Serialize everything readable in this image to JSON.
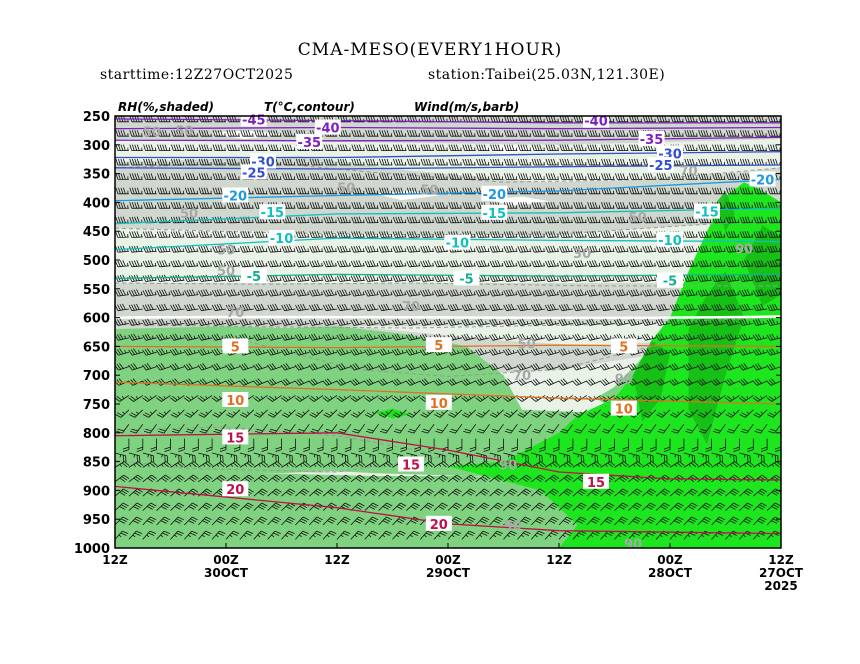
{
  "header": {
    "title": "CMA-MESO(EVERY1HOUR)",
    "starttime": "starttime:12Z27OCT2025",
    "station": "station:Taibei(25.03N,121.30E)"
  },
  "legend": {
    "rh": "RH(%,shaded)",
    "temp": "T(°C,contour)",
    "wind": "Wind(m/s,barb)"
  },
  "colors": {
    "rh_lt50": "#ffffff",
    "rh_50_70": "#e8f2e6",
    "rh_70_90": "#c7cdc6",
    "rh_90_100": "#7fd27f",
    "rh_sat": "#1ee61e",
    "rh_sat_dark": "#16b816",
    "rh_contour": "#999999",
    "temp_warm": "#e07020",
    "temp_hot": "#c0104a",
    "temp_m5": "#10b090",
    "temp_m10": "#10c0c0",
    "temp_m20": "#1a9ae6",
    "temp_m25": "#3050d0",
    "temp_m35": "#8020c0",
    "wind_barb": "#111111"
  },
  "chart_data": {
    "type": "heatmap",
    "title": "CMA-MESO(EVERY1HOUR)",
    "subtitle": "starttime:12Z27OCT2025  station:Taibei(25.03N,121.30E)",
    "xlabel": "",
    "ylabel": "",
    "x_ticks": [
      {
        "hours_after_start": 72,
        "label": [
          "12Z"
        ]
      },
      {
        "hours_after_start": 60,
        "label": [
          "00Z",
          "30OCT"
        ]
      },
      {
        "hours_after_start": 48,
        "label": [
          "12Z"
        ]
      },
      {
        "hours_after_start": 36,
        "label": [
          "00Z",
          "29OCT"
        ]
      },
      {
        "hours_after_start": 24,
        "label": [
          "12Z"
        ]
      },
      {
        "hours_after_start": 12,
        "label": [
          "00Z",
          "28OCT"
        ]
      },
      {
        "hours_after_start": 0,
        "label": [
          "12Z",
          "27OCT",
          "2025"
        ]
      }
    ],
    "x_direction": "time increases right-to-left",
    "y_ticks": [
      250,
      300,
      350,
      400,
      450,
      500,
      550,
      600,
      650,
      700,
      750,
      800,
      850,
      900,
      950,
      1000
    ],
    "ylim_hpa": [
      1000,
      250
    ],
    "rh_shading_levels_percent": [
      50,
      70,
      90
    ],
    "temperature_contours": [
      {
        "value": -45,
        "label": "-45",
        "color": "#8020c0",
        "points": [
          [
            72,
            255
          ],
          [
            48,
            258
          ],
          [
            24,
            262
          ],
          [
            0,
            262
          ]
        ],
        "labels_at": [
          [
            57,
            256
          ]
        ]
      },
      {
        "value": -40,
        "label": "-40",
        "color": "#8020c0",
        "points": [
          [
            72,
            272
          ],
          [
            48,
            270
          ],
          [
            24,
            272
          ],
          [
            0,
            270
          ]
        ],
        "labels_at": [
          [
            49,
            270
          ],
          [
            20,
            258
          ]
        ]
      },
      {
        "value": -35,
        "label": "-35",
        "color": "#8020c0",
        "points": [
          [
            72,
            292
          ],
          [
            48,
            293
          ],
          [
            24,
            292
          ],
          [
            0,
            287
          ]
        ],
        "labels_at": [
          [
            51,
            295
          ],
          [
            14,
            290
          ]
        ]
      },
      {
        "value": -30,
        "label": "-30",
        "color": "#3050d0",
        "points": [
          [
            72,
            322
          ],
          [
            48,
            322
          ],
          [
            24,
            316
          ],
          [
            0,
            312
          ]
        ],
        "labels_at": [
          [
            56,
            329
          ],
          [
            12,
            315
          ]
        ]
      },
      {
        "value": -25,
        "label": "-25",
        "color": "#3050d0",
        "points": [
          [
            72,
            340
          ],
          [
            48,
            342
          ],
          [
            24,
            338
          ],
          [
            0,
            335
          ]
        ],
        "labels_at": [
          [
            57,
            348
          ],
          [
            13,
            335
          ]
        ]
      },
      {
        "value": -20,
        "label": "-20",
        "color": "#1a9ae6",
        "points": [
          [
            72,
            397
          ],
          [
            48,
            388
          ],
          [
            24,
            380
          ],
          [
            0,
            360
          ]
        ],
        "labels_at": [
          [
            59,
            388
          ],
          [
            31,
            385
          ],
          [
            2,
            360
          ]
        ]
      },
      {
        "value": -15,
        "label": "-15",
        "color": "#10c0c0",
        "points": [
          [
            72,
            437
          ],
          [
            48,
            420
          ],
          [
            24,
            418
          ],
          [
            0,
            410
          ]
        ],
        "labels_at": [
          [
            55,
            417
          ],
          [
            31,
            418
          ],
          [
            8,
            416
          ]
        ]
      },
      {
        "value": -10,
        "label": "-10",
        "color": "#10c0c0",
        "points": [
          [
            72,
            482
          ],
          [
            48,
            462
          ],
          [
            24,
            466
          ],
          [
            0,
            468
          ]
        ],
        "labels_at": [
          [
            54,
            462
          ],
          [
            35,
            470
          ],
          [
            12,
            465
          ]
        ]
      },
      {
        "value": -5,
        "label": "-5",
        "color": "#10b090",
        "points": [
          [
            72,
            532
          ],
          [
            48,
            525
          ],
          [
            24,
            528
          ],
          [
            0,
            525
          ]
        ],
        "labels_at": [
          [
            57,
            528
          ],
          [
            34,
            532
          ],
          [
            12,
            536
          ]
        ]
      },
      {
        "value": 5,
        "label": "5",
        "color": "#e07020",
        "points": [
          [
            72,
            650
          ],
          [
            48,
            652
          ],
          [
            24,
            648
          ],
          [
            0,
            650
          ]
        ],
        "labels_at": [
          [
            59,
            650
          ],
          [
            37,
            648
          ],
          [
            17,
            650
          ]
        ]
      },
      {
        "value": 10,
        "label": "10",
        "color": "#e07020",
        "points": [
          [
            72,
            712
          ],
          [
            48,
            725
          ],
          [
            24,
            740
          ],
          [
            0,
            750
          ]
        ],
        "labels_at": [
          [
            59,
            743
          ],
          [
            37,
            748
          ],
          [
            17,
            758
          ]
        ]
      },
      {
        "value": 15,
        "label": "15",
        "color": "#c0104a",
        "points": [
          [
            72,
            805
          ],
          [
            48,
            800
          ],
          [
            36,
            830
          ],
          [
            24,
            868
          ],
          [
            12,
            880
          ],
          [
            0,
            882
          ]
        ],
        "labels_at": [
          [
            59,
            808
          ],
          [
            40,
            855
          ],
          [
            20,
            885
          ]
        ]
      },
      {
        "value": 20,
        "label": "20",
        "color": "#c0104a",
        "points": [
          [
            72,
            893
          ],
          [
            48,
            930
          ],
          [
            36,
            958
          ],
          [
            24,
            970
          ],
          [
            0,
            975
          ]
        ],
        "labels_at": [
          [
            59,
            898
          ],
          [
            37,
            958
          ]
        ]
      }
    ],
    "rh_labels": [
      {
        "label": "50",
        "x_hours": 68,
        "y_hpa": 277
      },
      {
        "label": "50",
        "x_hours": 64.5,
        "y_hpa": 275
      },
      {
        "label": "50",
        "x_hours": 47,
        "y_hpa": 374
      },
      {
        "label": "50",
        "x_hours": 38,
        "y_hpa": 378
      },
      {
        "label": "50",
        "x_hours": 64,
        "y_hpa": 418
      },
      {
        "label": "50",
        "x_hours": 60,
        "y_hpa": 482
      },
      {
        "label": "50",
        "x_hours": 60,
        "y_hpa": 518
      },
      {
        "label": "50",
        "x_hours": 15.5,
        "y_hpa": 425
      },
      {
        "label": "50",
        "x_hours": 27.5,
        "y_hpa": 645
      },
      {
        "label": "30",
        "x_hours": 21.5,
        "y_hpa": 488
      },
      {
        "label": "70",
        "x_hours": 10,
        "y_hpa": 345
      },
      {
        "label": "70",
        "x_hours": 40,
        "y_hpa": 580
      },
      {
        "label": "70",
        "x_hours": 59,
        "y_hpa": 590
      },
      {
        "label": "70",
        "x_hours": 28,
        "y_hpa": 700
      },
      {
        "label": "90",
        "x_hours": 4,
        "y_hpa": 480
      },
      {
        "label": "90",
        "x_hours": 17,
        "y_hpa": 706
      },
      {
        "label": "90",
        "x_hours": 29.5,
        "y_hpa": 855
      },
      {
        "label": "90",
        "x_hours": 29,
        "y_hpa": 960
      },
      {
        "label": "90",
        "x_hours": 16,
        "y_hpa": 992
      }
    ],
    "wind": {
      "type": "barbs",
      "speed_unit": "m/s",
      "profile": [
        {
          "p": 250,
          "speed": 35,
          "dir": 270
        },
        {
          "p": 300,
          "speed": 35,
          "dir": 270
        },
        {
          "p": 400,
          "speed": 25,
          "dir": 270
        },
        {
          "p": 500,
          "speed": 20,
          "dir": 265
        },
        {
          "p": 600,
          "speed": 15,
          "dir": 260
        },
        {
          "p": 700,
          "speed": 12,
          "dir": 250
        },
        {
          "p": 800,
          "speed": 8,
          "dir": 210
        },
        {
          "p": 850,
          "speed": 10,
          "dir": 60
        },
        {
          "p": 900,
          "speed": 13,
          "dir": 50
        },
        {
          "p": 950,
          "speed": 12,
          "dir": 45
        },
        {
          "p": 1000,
          "speed": 8,
          "dir": 40
        }
      ]
    }
  }
}
